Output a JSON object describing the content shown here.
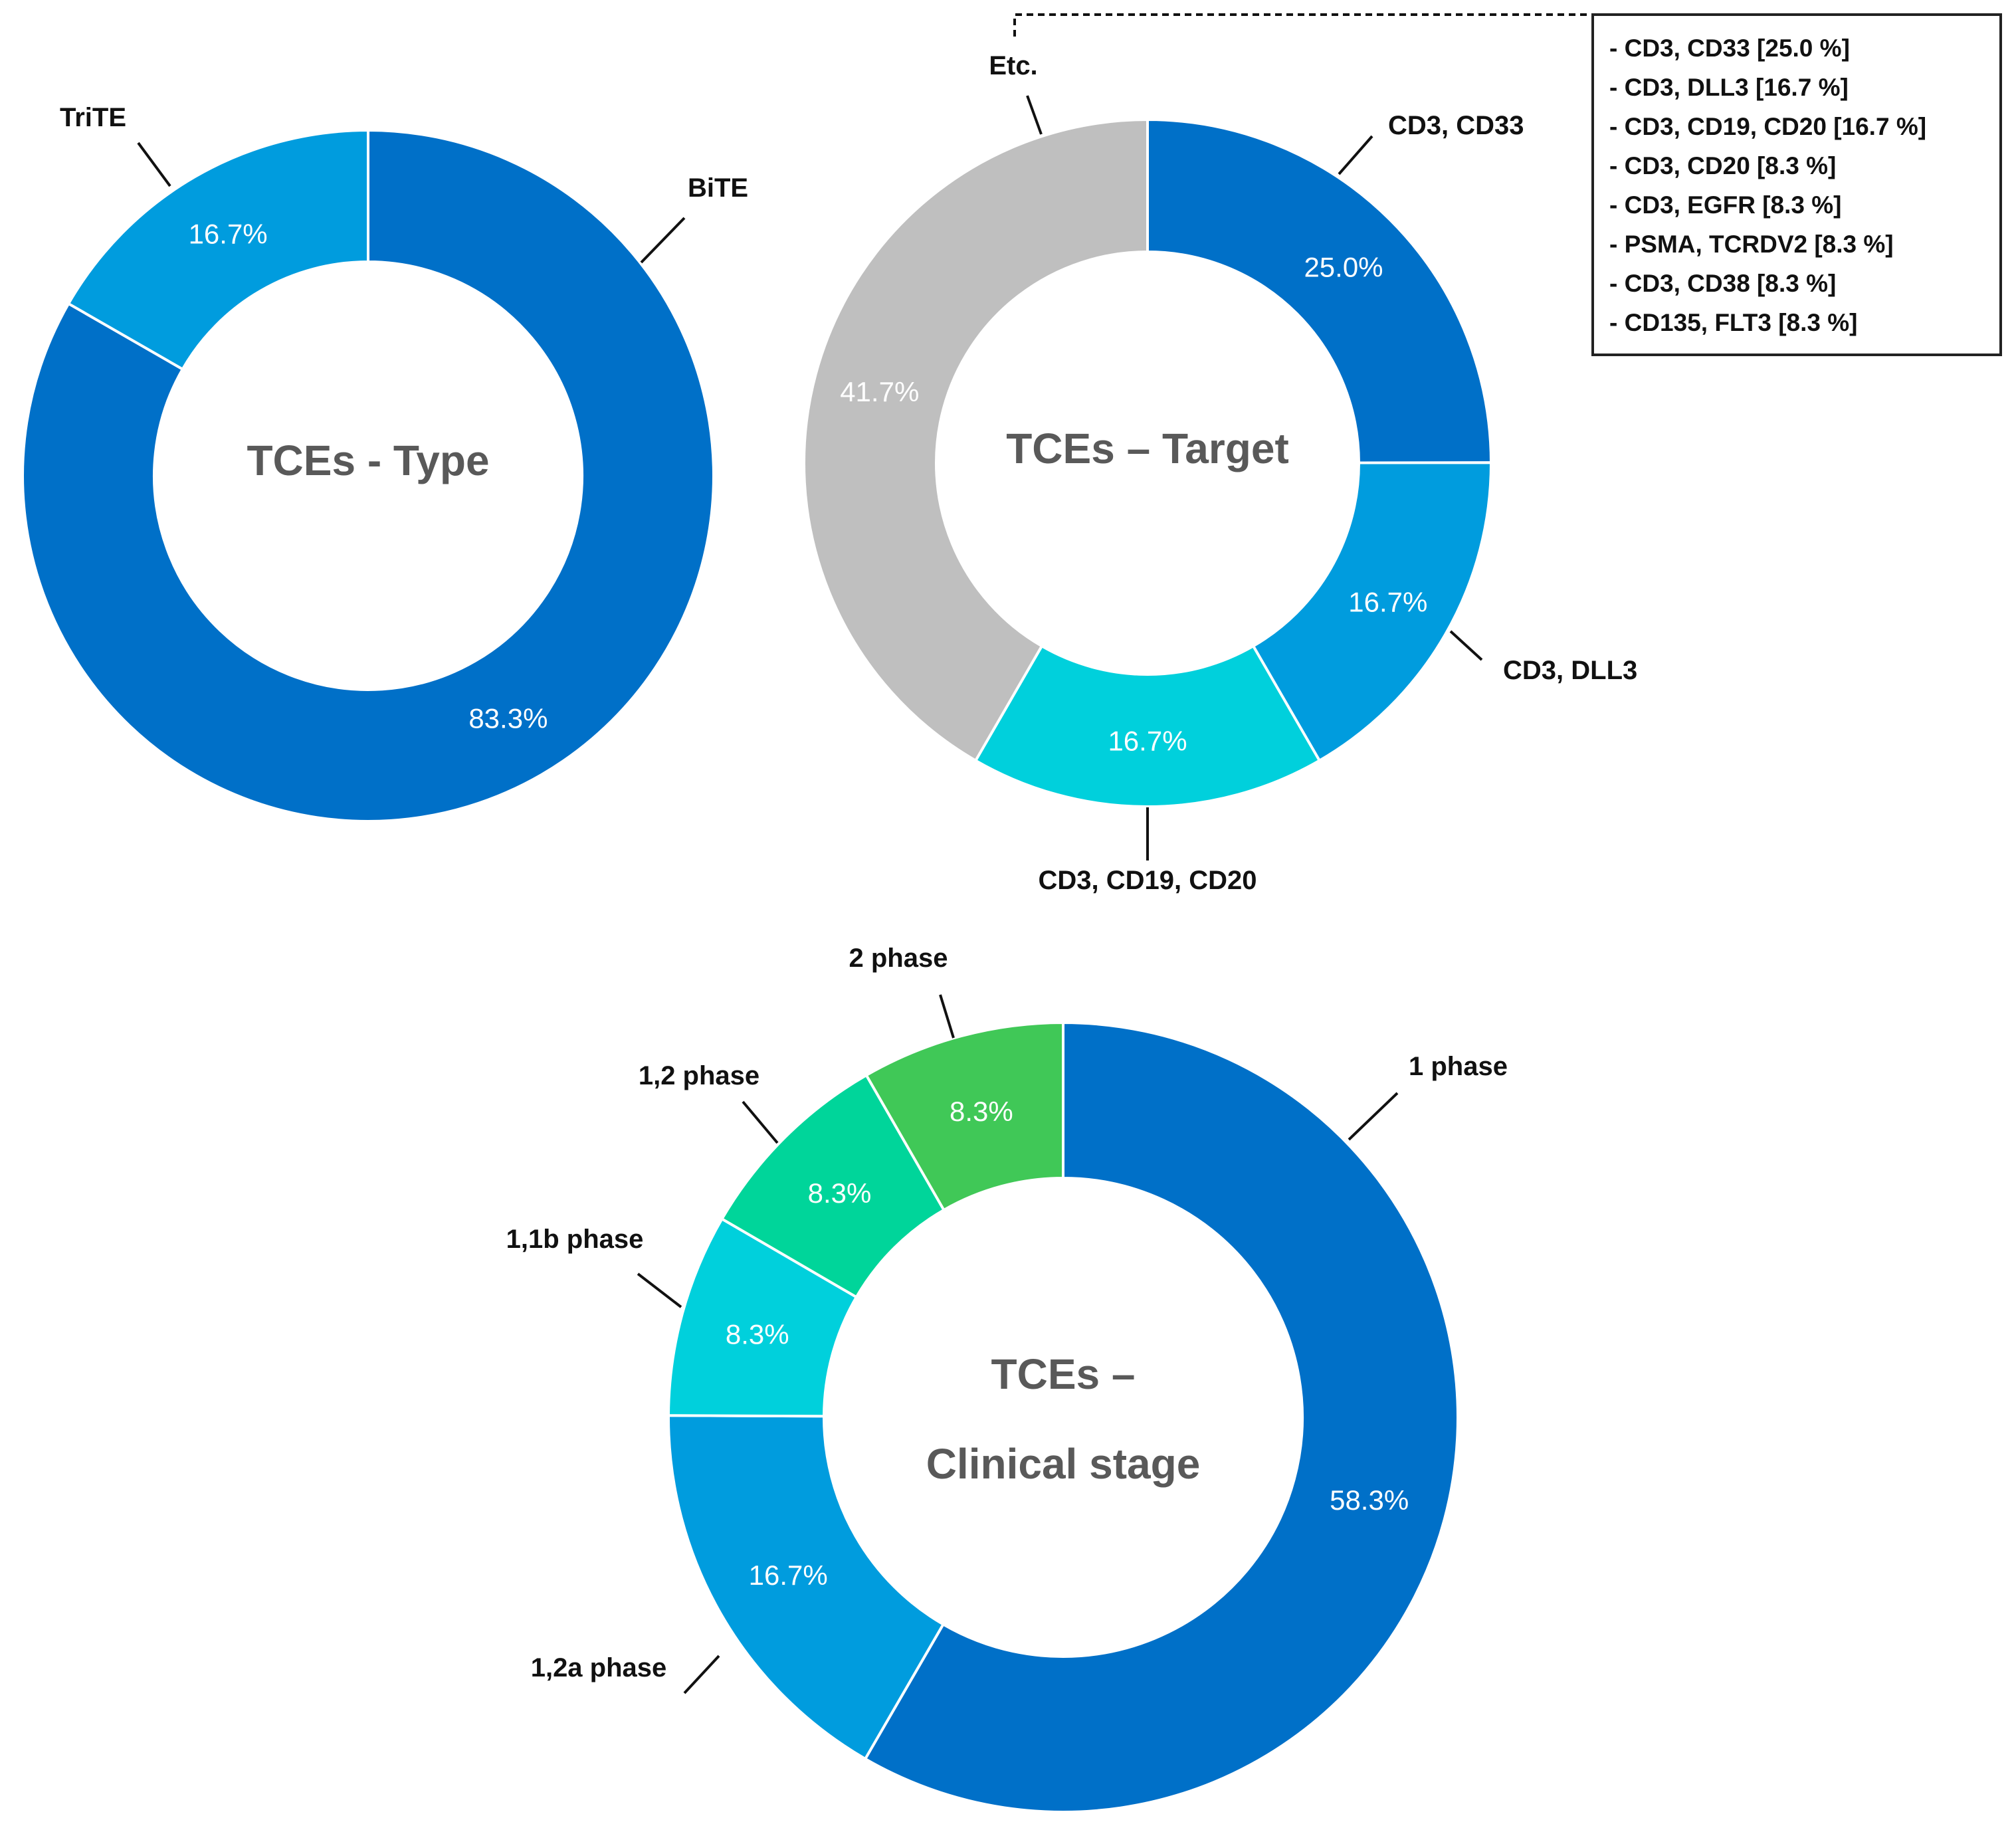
{
  "chart_data": [
    {
      "type": "pie",
      "variant": "donut",
      "id": "type",
      "title": "TCEs - Type",
      "slices": [
        {
          "label": "BiTE",
          "value": 83.3,
          "display": "83.3%",
          "color": "#0070C8"
        },
        {
          "label": "TriTE",
          "value": 16.7,
          "display": "16.7%",
          "color": "#009CDE"
        }
      ]
    },
    {
      "type": "pie",
      "variant": "donut",
      "id": "target",
      "title": "TCEs – Target",
      "slices": [
        {
          "label": "CD3, CD33",
          "value": 25.0,
          "display": "25.0%",
          "color": "#0070C8"
        },
        {
          "label": "CD3, DLL3",
          "value": 16.7,
          "display": "16.7%",
          "color": "#009CDE"
        },
        {
          "label": "CD3, CD19, CD20",
          "value": 16.7,
          "display": "16.7%",
          "color": "#00D0DC"
        },
        {
          "label": "Etc.",
          "value": 41.7,
          "display": "41.7%",
          "color": "#BFBFBF"
        }
      ],
      "legend": {
        "items": [
          "- CD3, CD33 [25.0 %]",
          "- CD3, DLL3 [16.7 %]",
          "- CD3, CD19, CD20 [16.7 %]",
          "- CD3, CD20 [8.3 %]",
          "- CD3, EGFR [8.3 %]",
          "- PSMA, TCRDV2 [8.3 %]",
          "- CD3, CD38 [8.3 %]",
          "- CD135, FLT3 [8.3 %]"
        ]
      }
    },
    {
      "type": "pie",
      "variant": "donut",
      "id": "stage",
      "title": "TCEs – Clinical stage",
      "title_lines": [
        "TCEs –",
        "Clinical stage"
      ],
      "slices": [
        {
          "label": "1 phase",
          "value": 58.3,
          "display": "58.3%",
          "color": "#0070C8"
        },
        {
          "label": "1,2a phase",
          "value": 16.7,
          "display": "16.7%",
          "color": "#009CDE"
        },
        {
          "label": "1,1b phase",
          "value": 8.3,
          "display": "8.3%",
          "color": "#00D0DC"
        },
        {
          "label": "1,2 phase",
          "value": 8.3,
          "display": "8.3%",
          "color": "#00D59A"
        },
        {
          "label": "2 phase",
          "value": 8.3,
          "display": "8.3%",
          "color": "#40C857"
        }
      ]
    }
  ]
}
